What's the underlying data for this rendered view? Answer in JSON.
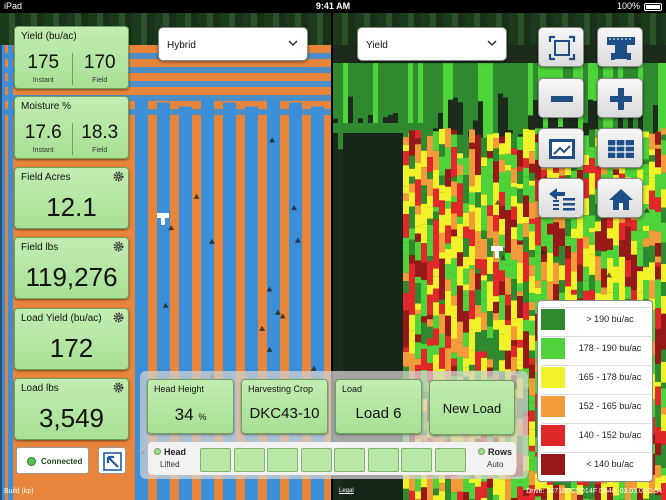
{
  "status_bar": {
    "device": "iPad",
    "time": "9:41 AM",
    "battery": "100%"
  },
  "left_map": {
    "layer_dropdown": "Hybrid"
  },
  "right_map": {
    "layer_dropdown": "Yield"
  },
  "tiles": {
    "yield": {
      "title": "Yield (bu/ac)",
      "instant_value": "175",
      "instant_label": "Instant",
      "field_value": "170",
      "field_label": "Field"
    },
    "moisture": {
      "title": "Moisture %",
      "instant_value": "17.6",
      "instant_label": "Instant",
      "field_value": "18.3",
      "field_label": "Field"
    },
    "field_acres": {
      "title": "Field Acres",
      "value": "12.1"
    },
    "field_lbs": {
      "title": "Field lbs",
      "value": "119,276"
    },
    "load_yield": {
      "title": "Load Yield (bu/ac)",
      "value": "172"
    },
    "load_lbs": {
      "title": "Load lbs",
      "value": "3,549"
    }
  },
  "connection": {
    "label": "Connected",
    "status_color": "#5cc055"
  },
  "bottom": {
    "head_height": {
      "title": "Head Height",
      "value": "34",
      "unit": "%"
    },
    "harvesting_crop": {
      "title": "Harvesting Crop",
      "value": "DKC43-10"
    },
    "load": {
      "title": "Load",
      "value": "Load 6"
    },
    "new_load_label": "New Load",
    "head": {
      "main": "Head",
      "sub": "Lifted"
    },
    "rows": {
      "main": "Rows",
      "sub": "Auto"
    },
    "row_count": 8
  },
  "controls": [
    "fullscreen-icon",
    "harvester-icon",
    "zoom-out-icon",
    "zoom-in-icon",
    "map-image-icon",
    "table-icon",
    "swap-layers-icon",
    "home-icon"
  ],
  "legend": [
    {
      "label": "> 190 bu/ac",
      "color": "#2f8a2f"
    },
    {
      "label": "178 - 190 bu/ac",
      "color": "#4ed43a"
    },
    {
      "label": "165 - 178 bu/ac",
      "color": "#f2f22a"
    },
    {
      "label": "152 - 165 bu/ac",
      "color": "#f39a3a"
    },
    {
      "label": "140 - 152 bu/ac",
      "color": "#e0282a"
    },
    {
      "label": "< 140 bu/ac",
      "color": "#961818"
    }
  ],
  "footer": {
    "build": "Build  (kp)",
    "legal": "Legal",
    "drive": "Drive: 24718CC5D14F D640_03.03.01C-54"
  },
  "colors": {
    "orange": "#e8853a",
    "blue": "#3a8fd8",
    "tile_green": "#b3e6a0"
  }
}
